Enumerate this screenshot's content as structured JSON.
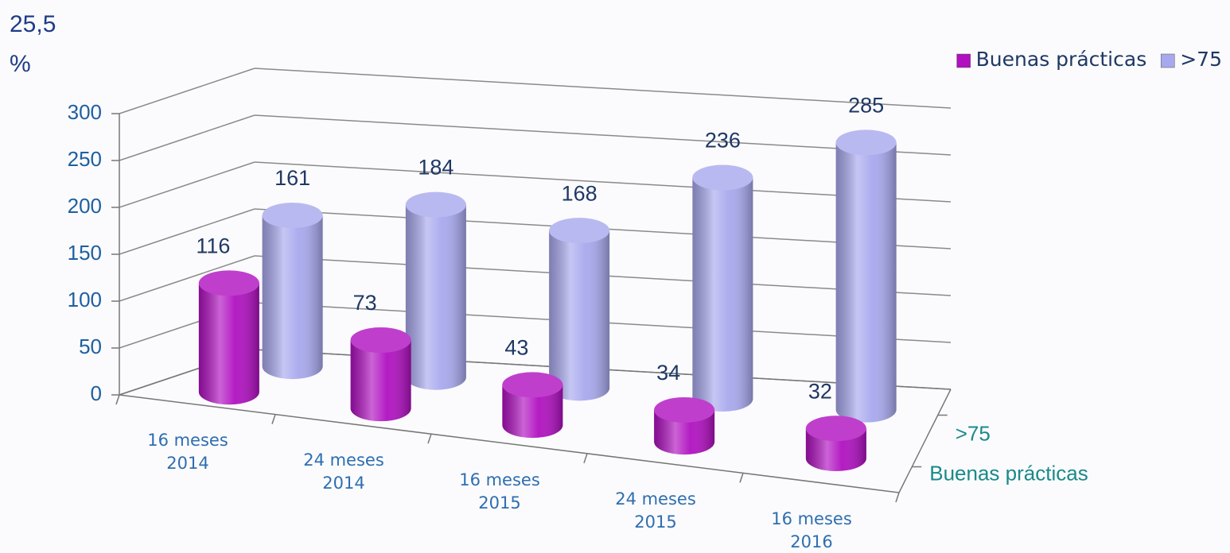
{
  "chart_data": {
    "type": "bar3d",
    "annotations": [
      "25,5",
      "%"
    ],
    "categories": [
      "16 meses 2014",
      "24 meses 2014",
      "16 meses 2015",
      "24 meses 2015",
      "16 meses 2016"
    ],
    "series": [
      {
        "name": "Buenas prácticas",
        "color": "#b010c0",
        "values": [
          116,
          73,
          43,
          34,
          32
        ]
      },
      {
        "name": ">75",
        "color": "#a8a8ee",
        "values": [
          161,
          184,
          168,
          236,
          285
        ]
      }
    ],
    "ylim": [
      0,
      300
    ],
    "yticks": [
      0,
      50,
      100,
      150,
      200,
      250,
      300
    ],
    "grid": true,
    "legend": "top-right"
  }
}
